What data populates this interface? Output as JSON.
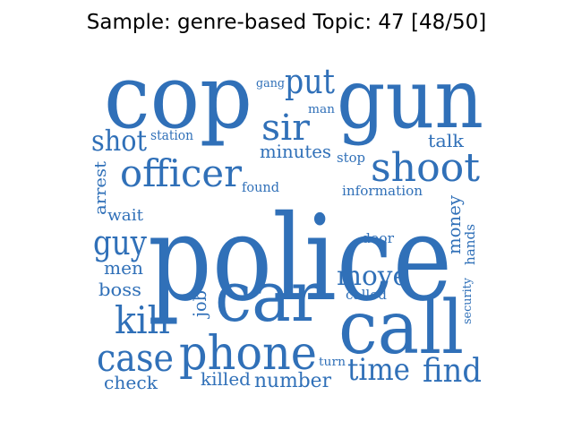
{
  "title": "Sample: genre-based Topic: 47 [48/50]",
  "color": "#3070b8",
  "words": [
    {
      "text": "police",
      "size": "big"
    },
    {
      "text": "cop",
      "size": "xl"
    },
    {
      "text": "gun",
      "size": "xl"
    },
    {
      "text": "call",
      "size": "xl"
    },
    {
      "text": "car",
      "size": "xl"
    },
    {
      "text": "phone",
      "size": "l"
    },
    {
      "text": "shoot",
      "size": "l"
    },
    {
      "text": "officer",
      "size": "l"
    },
    {
      "text": "sir",
      "size": "l"
    },
    {
      "text": "put",
      "size": "l"
    },
    {
      "text": "shot",
      "size": "m"
    },
    {
      "text": "kill",
      "size": "l"
    },
    {
      "text": "case",
      "size": "l"
    },
    {
      "text": "guy",
      "size": "m"
    },
    {
      "text": "time",
      "size": "m"
    },
    {
      "text": "find",
      "size": "m"
    },
    {
      "text": "move",
      "size": "m"
    },
    {
      "text": "men",
      "size": "s"
    },
    {
      "text": "boss",
      "size": "s"
    },
    {
      "text": "job",
      "size": "s"
    },
    {
      "text": "check",
      "size": "s"
    },
    {
      "text": "killed",
      "size": "s"
    },
    {
      "text": "number",
      "size": "s"
    },
    {
      "text": "wait",
      "size": "s"
    },
    {
      "text": "arrest",
      "size": "s"
    },
    {
      "text": "found",
      "size": "xs"
    },
    {
      "text": "information",
      "size": "xs"
    },
    {
      "text": "money",
      "size": "s"
    },
    {
      "text": "hands",
      "size": "xs"
    },
    {
      "text": "door",
      "size": "xs"
    },
    {
      "text": "called",
      "size": "xs"
    },
    {
      "text": "security",
      "size": "xs"
    },
    {
      "text": "turn",
      "size": "xs"
    },
    {
      "text": "talk",
      "size": "s"
    },
    {
      "text": "stop",
      "size": "xs"
    },
    {
      "text": "minutes",
      "size": "s"
    },
    {
      "text": "station",
      "size": "xs"
    },
    {
      "text": "gang",
      "size": "xs"
    },
    {
      "text": "man",
      "size": "xs"
    }
  ]
}
